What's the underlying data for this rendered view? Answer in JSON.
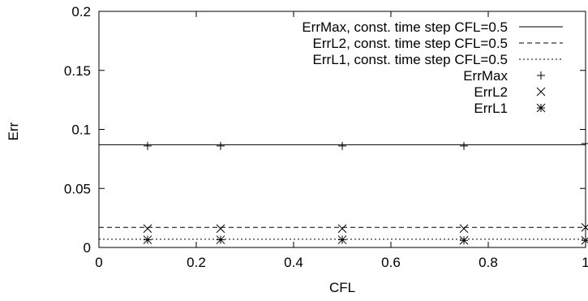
{
  "chart_data": {
    "type": "line",
    "xlabel": "CFL",
    "ylabel": "Err",
    "xlim": [
      0,
      1
    ],
    "ylim": [
      0,
      0.2
    ],
    "x_ticks": [
      0,
      0.2,
      0.4,
      0.6,
      0.8,
      1
    ],
    "x_tick_labels": [
      "0",
      "0.2",
      "0.4",
      "0.6",
      "0.8",
      "1"
    ],
    "y_ticks": [
      0,
      0.05,
      0.1,
      0.15,
      0.2
    ],
    "y_tick_labels": [
      "0",
      "0.05",
      "0.1",
      "0.15",
      "0.2"
    ],
    "grid": false,
    "legend_position": "top-right",
    "reference_lines": [
      {
        "name": "ErrMax, const. time step CFL=0.5",
        "value": 0.087,
        "style": "solid"
      },
      {
        "name": "ErrL2, const. time step CFL=0.5",
        "value": 0.017,
        "style": "dashed"
      },
      {
        "name": "ErrL1, const. time step CFL=0.5",
        "value": 0.007,
        "style": "dotted"
      }
    ],
    "series": [
      {
        "name": "ErrMax",
        "marker": "plus",
        "x": [
          0.1,
          0.25,
          0.5,
          0.75,
          1.0
        ],
        "y": [
          0.086,
          0.086,
          0.086,
          0.086,
          0.088
        ]
      },
      {
        "name": "ErrL2",
        "marker": "cross",
        "x": [
          0.1,
          0.25,
          0.5,
          0.75,
          1.0
        ],
        "y": [
          0.016,
          0.016,
          0.016,
          0.016,
          0.017
        ]
      },
      {
        "name": "ErrL1",
        "marker": "star",
        "x": [
          0.1,
          0.25,
          0.5,
          0.75,
          1.0
        ],
        "y": [
          0.0065,
          0.0065,
          0.0065,
          0.006,
          0.006
        ]
      }
    ],
    "colors": {
      "foreground": "#000000",
      "background": "#ffffff"
    }
  }
}
